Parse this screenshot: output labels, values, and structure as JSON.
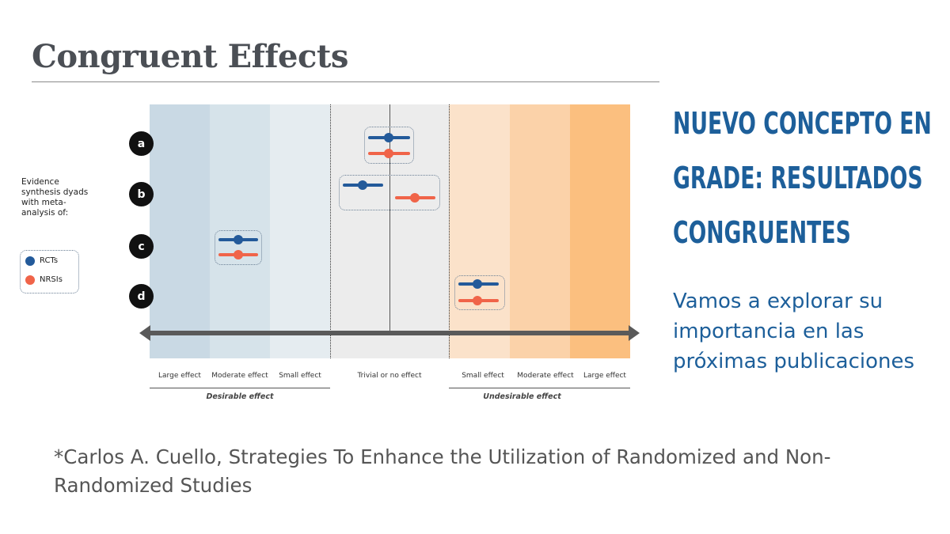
{
  "slide": {
    "title": "Congruent Effects",
    "heading": "Nuevo concepto en GRADE: resultados congruentes",
    "subtext": "Vamos a explorar su importancia en las próximas publicaciones",
    "citation": "*Carlos A. Cuello, Strategies To Enhance the Utilization of Randomized and Non-Randomized Studies"
  },
  "legend": {
    "text": "Evidence synthesis dyads with meta-analysis of:",
    "items": [
      {
        "label": "RCTs",
        "color": "#235a9a"
      },
      {
        "label": "NRSIs",
        "color": "#f06449"
      }
    ]
  },
  "diagram": {
    "rows": [
      "a",
      "b",
      "c",
      "d"
    ],
    "categories": [
      "Large effect",
      "Moderate effect",
      "Small effect",
      "Trivial or no effect",
      "Small effect",
      "Moderate effect",
      "Large effect"
    ],
    "groups": [
      "Desirable effect",
      "Undesirable effect"
    ],
    "band_colors": [
      "#c9d9e4",
      "#d6e3ea",
      "#e5ecf0",
      "#ececec",
      "#fbe2ca",
      "#fbd2a9",
      "#fbbf7f"
    ],
    "series_colors": {
      "rct": "#235a9a",
      "nrsi": "#f06449"
    }
  }
}
